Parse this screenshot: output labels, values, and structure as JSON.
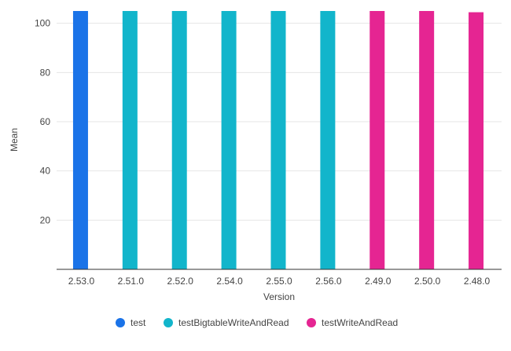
{
  "chart_data": {
    "type": "bar",
    "categories": [
      "2.53.0",
      "2.51.0",
      "2.52.0",
      "2.54.0",
      "2.55.0",
      "2.56.0",
      "2.49.0",
      "2.50.0",
      "2.48.0"
    ],
    "series": [
      {
        "name": "test",
        "color": "#1a73e8",
        "values": [
          105,
          null,
          null,
          null,
          null,
          null,
          null,
          null,
          null
        ]
      },
      {
        "name": "testBigtableWriteAndRead",
        "color": "#12b5cb",
        "values": [
          null,
          105,
          105,
          105,
          105,
          105,
          null,
          null,
          null
        ]
      },
      {
        "name": "testWriteAndRead",
        "color": "#e52592",
        "values": [
          null,
          null,
          null,
          null,
          null,
          null,
          105,
          105,
          104.5
        ]
      }
    ],
    "xlabel": "Version",
    "ylabel": "Mean",
    "ylim": [
      0,
      105
    ],
    "yticks": [
      20,
      40,
      60,
      80,
      100
    ],
    "grid": true,
    "legend_position": "bottom"
  }
}
